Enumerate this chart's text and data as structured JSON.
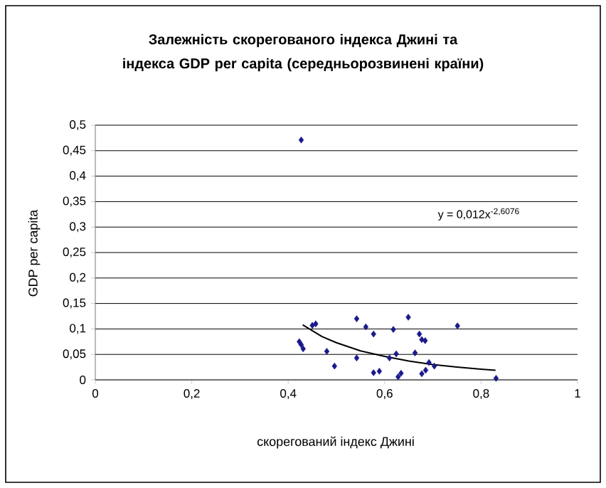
{
  "chart_data": {
    "type": "scatter",
    "title": "Залежність скорегованого індекса Джині та індекса GDP per capita (середньорозвинені країни)",
    "xlabel": "скорегований індекс Джині",
    "ylabel": "GDP per capita",
    "annotations": [
      "y = 0,012x$^{-2,6076}$"
    ],
    "xlim": [
      0,
      1
    ],
    "ylim": [
      0,
      0.5
    ],
    "xticks": [
      0,
      {
        "value": 0.2,
        "label": "0,2"
      },
      {
        "value": 0.4,
        "label": "0,4"
      },
      {
        "value": 0.6,
        "label": "0,6"
      },
      {
        "value": 0.8,
        "label": "0,8"
      },
      1
    ],
    "yticks": [
      0,
      {
        "value": 0.05,
        "label": "0,05"
      },
      {
        "value": 0.1,
        "label": "0,1"
      },
      {
        "value": 0.15,
        "label": "0,15"
      },
      {
        "value": 0.2,
        "label": "0,2"
      },
      {
        "value": 0.25,
        "label": "0,25"
      },
      {
        "value": 0.3,
        "label": "0,3"
      },
      {
        "value": 0.35,
        "label": "0,35"
      },
      {
        "value": 0.4,
        "label": "0,4"
      },
      {
        "value": 0.45,
        "label": "0,45"
      },
      {
        "value": 0.5,
        "label": "0,5"
      }
    ],
    "grid": "y",
    "marker": "diamond",
    "series": [
      {
        "color": "#1a1a8c",
        "x": [
          0.427,
          0.423,
          0.427,
          0.431,
          0.45,
          0.457,
          0.48,
          0.496,
          0.542,
          0.542,
          0.561,
          0.577,
          0.577,
          0.589,
          0.618,
          0.61,
          0.624,
          0.628,
          0.634,
          0.649,
          0.663,
          0.672,
          0.677,
          0.684,
          0.677,
          0.685,
          0.692,
          0.703,
          0.751,
          0.831
        ],
        "values": [
          0.471,
          0.075,
          0.069,
          0.061,
          0.107,
          0.11,
          0.056,
          0.027,
          0.12,
          0.043,
          0.104,
          0.09,
          0.014,
          0.017,
          0.099,
          0.043,
          0.051,
          0.006,
          0.013,
          0.123,
          0.053,
          0.09,
          0.079,
          0.077,
          0.012,
          0.019,
          0.034,
          0.027,
          0.106,
          0.003
        ]
      },
      {
        "type": "line",
        "marker": "none",
        "color": "#000000",
        "x": [
          0.43,
          0.47,
          0.5,
          0.55,
          0.6,
          0.65,
          0.7,
          0.75,
          0.8,
          0.83
        ],
        "values": [
          0.108,
          0.085,
          0.073,
          0.057,
          0.046,
          0.037,
          0.03,
          0.025,
          0.021,
          0.019
        ]
      }
    ]
  }
}
